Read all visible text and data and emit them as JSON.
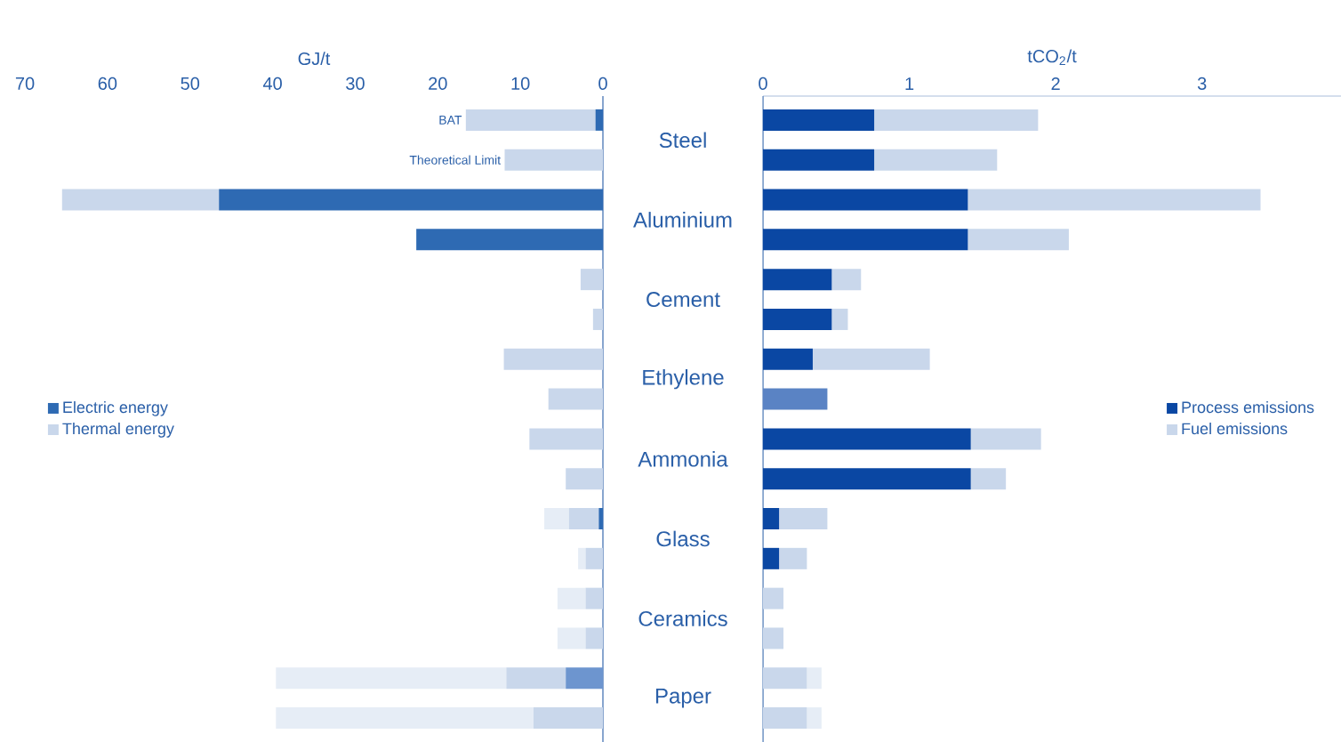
{
  "chart_data": [
    {
      "type": "bar",
      "orientation": "horizontal",
      "stacked": true,
      "xlabel": "GJ/t",
      "categories": [
        "Steel",
        null,
        "Aluminium",
        null,
        "Cement",
        null,
        "Ethylene",
        null,
        "Ammonia",
        null,
        "Glass",
        null,
        "Ceramics",
        null,
        "Paper",
        null
      ],
      "xlim": [
        70,
        0
      ],
      "xticks": [
        70,
        60,
        50,
        40,
        30,
        20,
        10,
        0
      ],
      "legend": "left",
      "grid": false,
      "annotations": [
        "BAT",
        "Theoretical Limit"
      ],
      "series": [
        {
          "name": "Electric energy",
          "color": "#2e6ab3",
          "values": [
            0.9,
            null,
            46.5,
            22.6,
            null,
            null,
            null,
            null,
            null,
            null,
            0.5,
            null,
            null,
            null,
            null,
            null
          ]
        },
        {
          "color": "#6d95cf",
          "values": [
            null,
            null,
            null,
            null,
            null,
            null,
            null,
            null,
            null,
            null,
            null,
            null,
            null,
            null,
            4.5,
            null
          ]
        },
        {
          "name": "Thermal energy",
          "color": "#c9d7eb",
          "values": [
            15.7,
            11.9,
            19.0,
            null,
            2.7,
            1.2,
            12.0,
            6.6,
            8.9,
            4.5,
            3.6,
            2.1,
            2.1,
            2.1,
            7.2,
            8.4
          ]
        },
        {
          "color": "#e6edf6",
          "values": [
            null,
            null,
            null,
            null,
            null,
            null,
            null,
            null,
            null,
            null,
            3.0,
            0.9,
            3.4,
            3.4,
            27.9,
            31.2
          ]
        }
      ]
    },
    {
      "type": "bar",
      "orientation": "horizontal",
      "stacked": true,
      "xlabel": "tCO$_{2}$/t",
      "categories": [
        null,
        null,
        null,
        null,
        null,
        null,
        null,
        null,
        null,
        null,
        null,
        null,
        null,
        null,
        null,
        null
      ],
      "xlim": [
        0,
        3.95
      ],
      "xticks": [
        0,
        1,
        2,
        3
      ],
      "legend": "right",
      "grid": false,
      "series": [
        {
          "name": "Process emissions",
          "color": "#0a47a3",
          "values": [
            0.76,
            0.76,
            1.4,
            1.4,
            0.47,
            0.47,
            0.34,
            null,
            1.42,
            1.42,
            0.11,
            0.11,
            null,
            null,
            null,
            null
          ]
        },
        {
          "color": "#5a83c4",
          "values": [
            null,
            null,
            null,
            null,
            null,
            null,
            null,
            0.44,
            null,
            null,
            null,
            null,
            null,
            null,
            null,
            null
          ]
        },
        {
          "name": "Fuel emissions",
          "color": "#c9d7eb",
          "values": [
            1.12,
            0.84,
            2.0,
            0.69,
            0.2,
            0.11,
            0.8,
            null,
            0.48,
            0.24,
            0.33,
            0.19,
            0.14,
            0.14,
            0.3,
            0.3
          ]
        },
        {
          "color": "#e6edf6",
          "values": [
            null,
            null,
            null,
            null,
            null,
            null,
            null,
            null,
            null,
            null,
            null,
            null,
            null,
            null,
            0.1,
            0.1
          ]
        }
      ]
    }
  ]
}
